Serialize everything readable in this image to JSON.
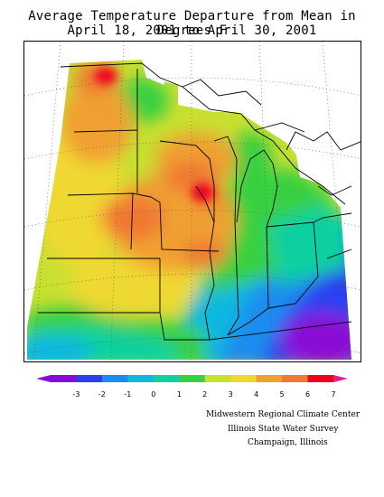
{
  "title": {
    "line1": "Average Temperature Departure from Mean in Degrees F",
    "line2": "April 18, 2001  to April 30, 2001"
  },
  "legend": {
    "ticks": [
      "-3",
      "-2",
      "-1",
      "0",
      "1",
      "2",
      "3",
      "4",
      "5",
      "6",
      "7"
    ],
    "colors": [
      "#8a0bd6",
      "#2a40f0",
      "#1a8cf0",
      "#10b8e0",
      "#10d0a0",
      "#38d040",
      "#c8e030",
      "#f0d830",
      "#f0a030",
      "#f07830",
      "#f00020"
    ]
  },
  "credits": {
    "line1": "Midwestern Regional Climate Center",
    "line2": "Illinois State Water Survey",
    "line3": "Champaign, Illinois"
  }
}
